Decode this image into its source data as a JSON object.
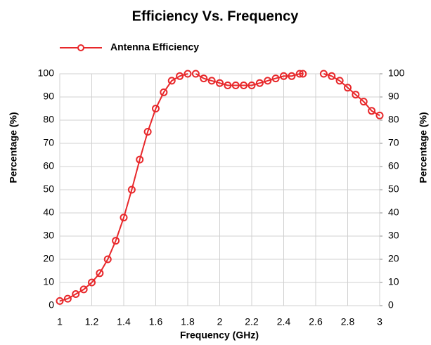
{
  "chart_data": {
    "type": "line",
    "title": "Efficiency Vs. Frequency",
    "x_label": "Frequency (GHz)",
    "y_label": "Percentage (%)",
    "y2_label": "Percentage (%)",
    "legend": "top-left",
    "grid": true,
    "x": [
      1.0,
      1.05,
      1.1,
      1.15,
      1.2,
      1.25,
      1.3,
      1.35,
      1.4,
      1.45,
      1.5,
      1.55,
      1.6,
      1.65,
      1.7,
      1.75,
      1.8,
      1.825,
      1.85,
      1.9,
      1.95,
      2.0,
      2.05,
      2.1,
      2.15,
      2.2,
      2.25,
      2.3,
      2.35,
      2.4,
      2.45,
      2.5,
      2.52,
      2.585,
      2.65,
      2.7,
      2.75,
      2.8,
      2.85,
      2.9,
      2.95,
      3.0
    ],
    "series": [
      {
        "name": "Antenna Efficiency",
        "color": "#e8282b",
        "values": [
          2,
          3,
          5,
          7,
          10,
          14,
          20,
          28,
          38,
          50,
          63,
          75,
          85,
          92,
          97,
          99,
          100,
          null,
          100,
          98,
          97,
          96,
          95,
          95,
          95,
          95,
          96,
          97,
          98,
          99,
          99,
          100,
          100,
          null,
          100,
          99,
          97,
          94,
          91,
          88,
          84,
          82
        ]
      }
    ],
    "xlim": [
      1,
      3
    ],
    "xticks": [
      1,
      1.2,
      1.4,
      1.6,
      1.8,
      2,
      2.2,
      2.4,
      2.6,
      2.8,
      3
    ],
    "ylim": [
      0,
      100
    ],
    "yticks": [
      0,
      10,
      20,
      30,
      40,
      50,
      60,
      70,
      80,
      90,
      100
    ],
    "y2lim": [
      0,
      100
    ],
    "y2ticks": [
      0,
      10,
      20,
      30,
      40,
      50,
      60,
      70,
      80,
      90,
      100
    ]
  }
}
